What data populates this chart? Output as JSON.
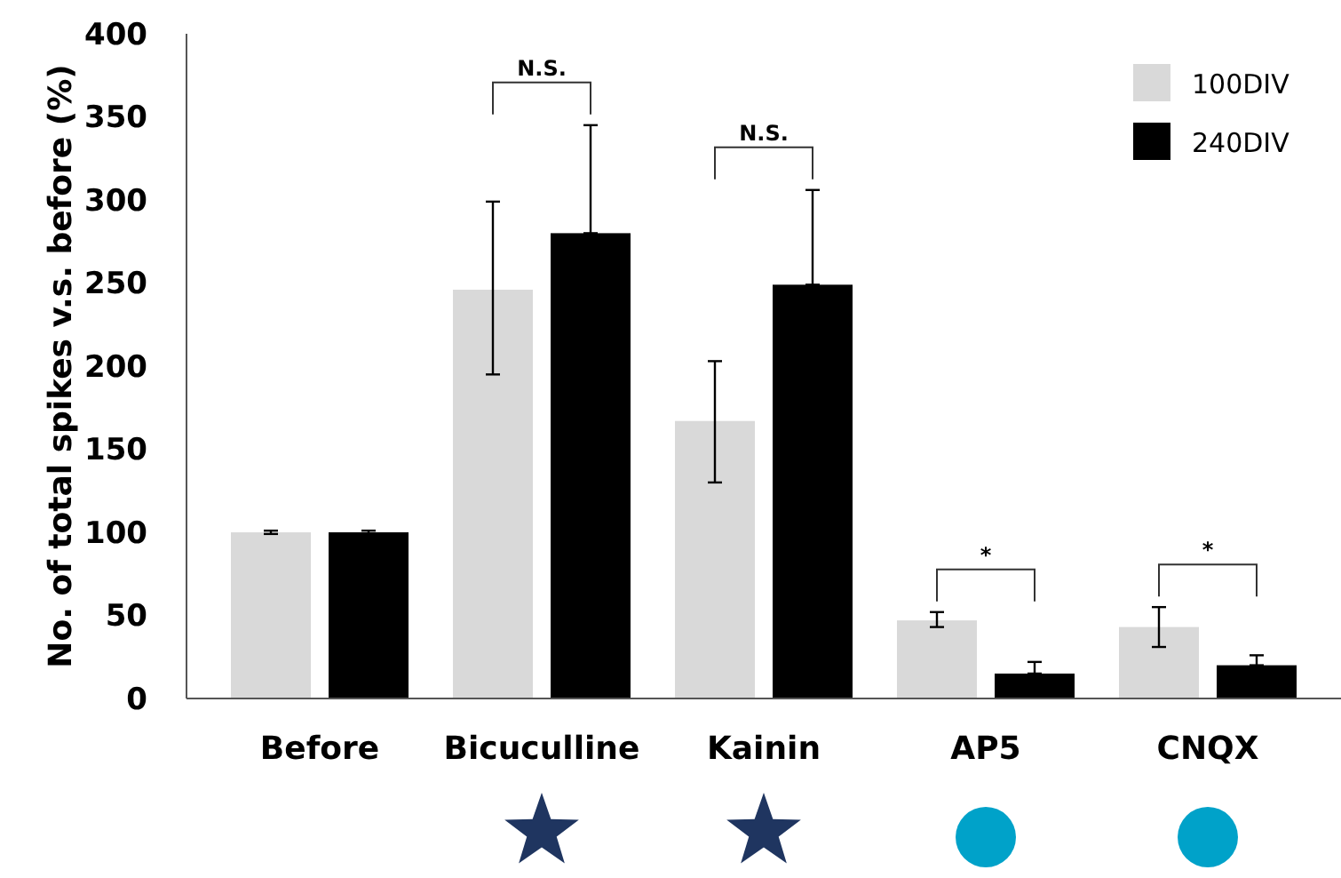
{
  "chart_data": {
    "type": "bar",
    "ylabel": "No. of total spikes v.s. before (%)",
    "categories": [
      "Before",
      "Bicuculline",
      "Kainin",
      "AP5",
      "CNQX"
    ],
    "series": [
      {
        "name": "100DIV",
        "color": "#d9d9d9",
        "values": [
          100,
          246,
          167,
          47,
          43
        ],
        "errors": [
          1,
          [
            195,
            299
          ],
          [
            130,
            203
          ],
          [
            43,
            52
          ],
          [
            31,
            55
          ]
        ]
      },
      {
        "name": "240DIV",
        "color": "#000000",
        "values": [
          100,
          280,
          249,
          15,
          20
        ],
        "errors": [
          1,
          [
            280,
            345
          ],
          [
            249,
            306
          ],
          [
            15,
            22
          ],
          [
            20,
            26
          ]
        ]
      }
    ],
    "ylim": [
      0,
      400
    ],
    "yticks": [
      0,
      50,
      100,
      150,
      200,
      250,
      300,
      350,
      400
    ],
    "grid": false,
    "legend": "top right",
    "annotations": [
      "N.S.",
      "N.S.",
      "*",
      "*"
    ]
  }
}
